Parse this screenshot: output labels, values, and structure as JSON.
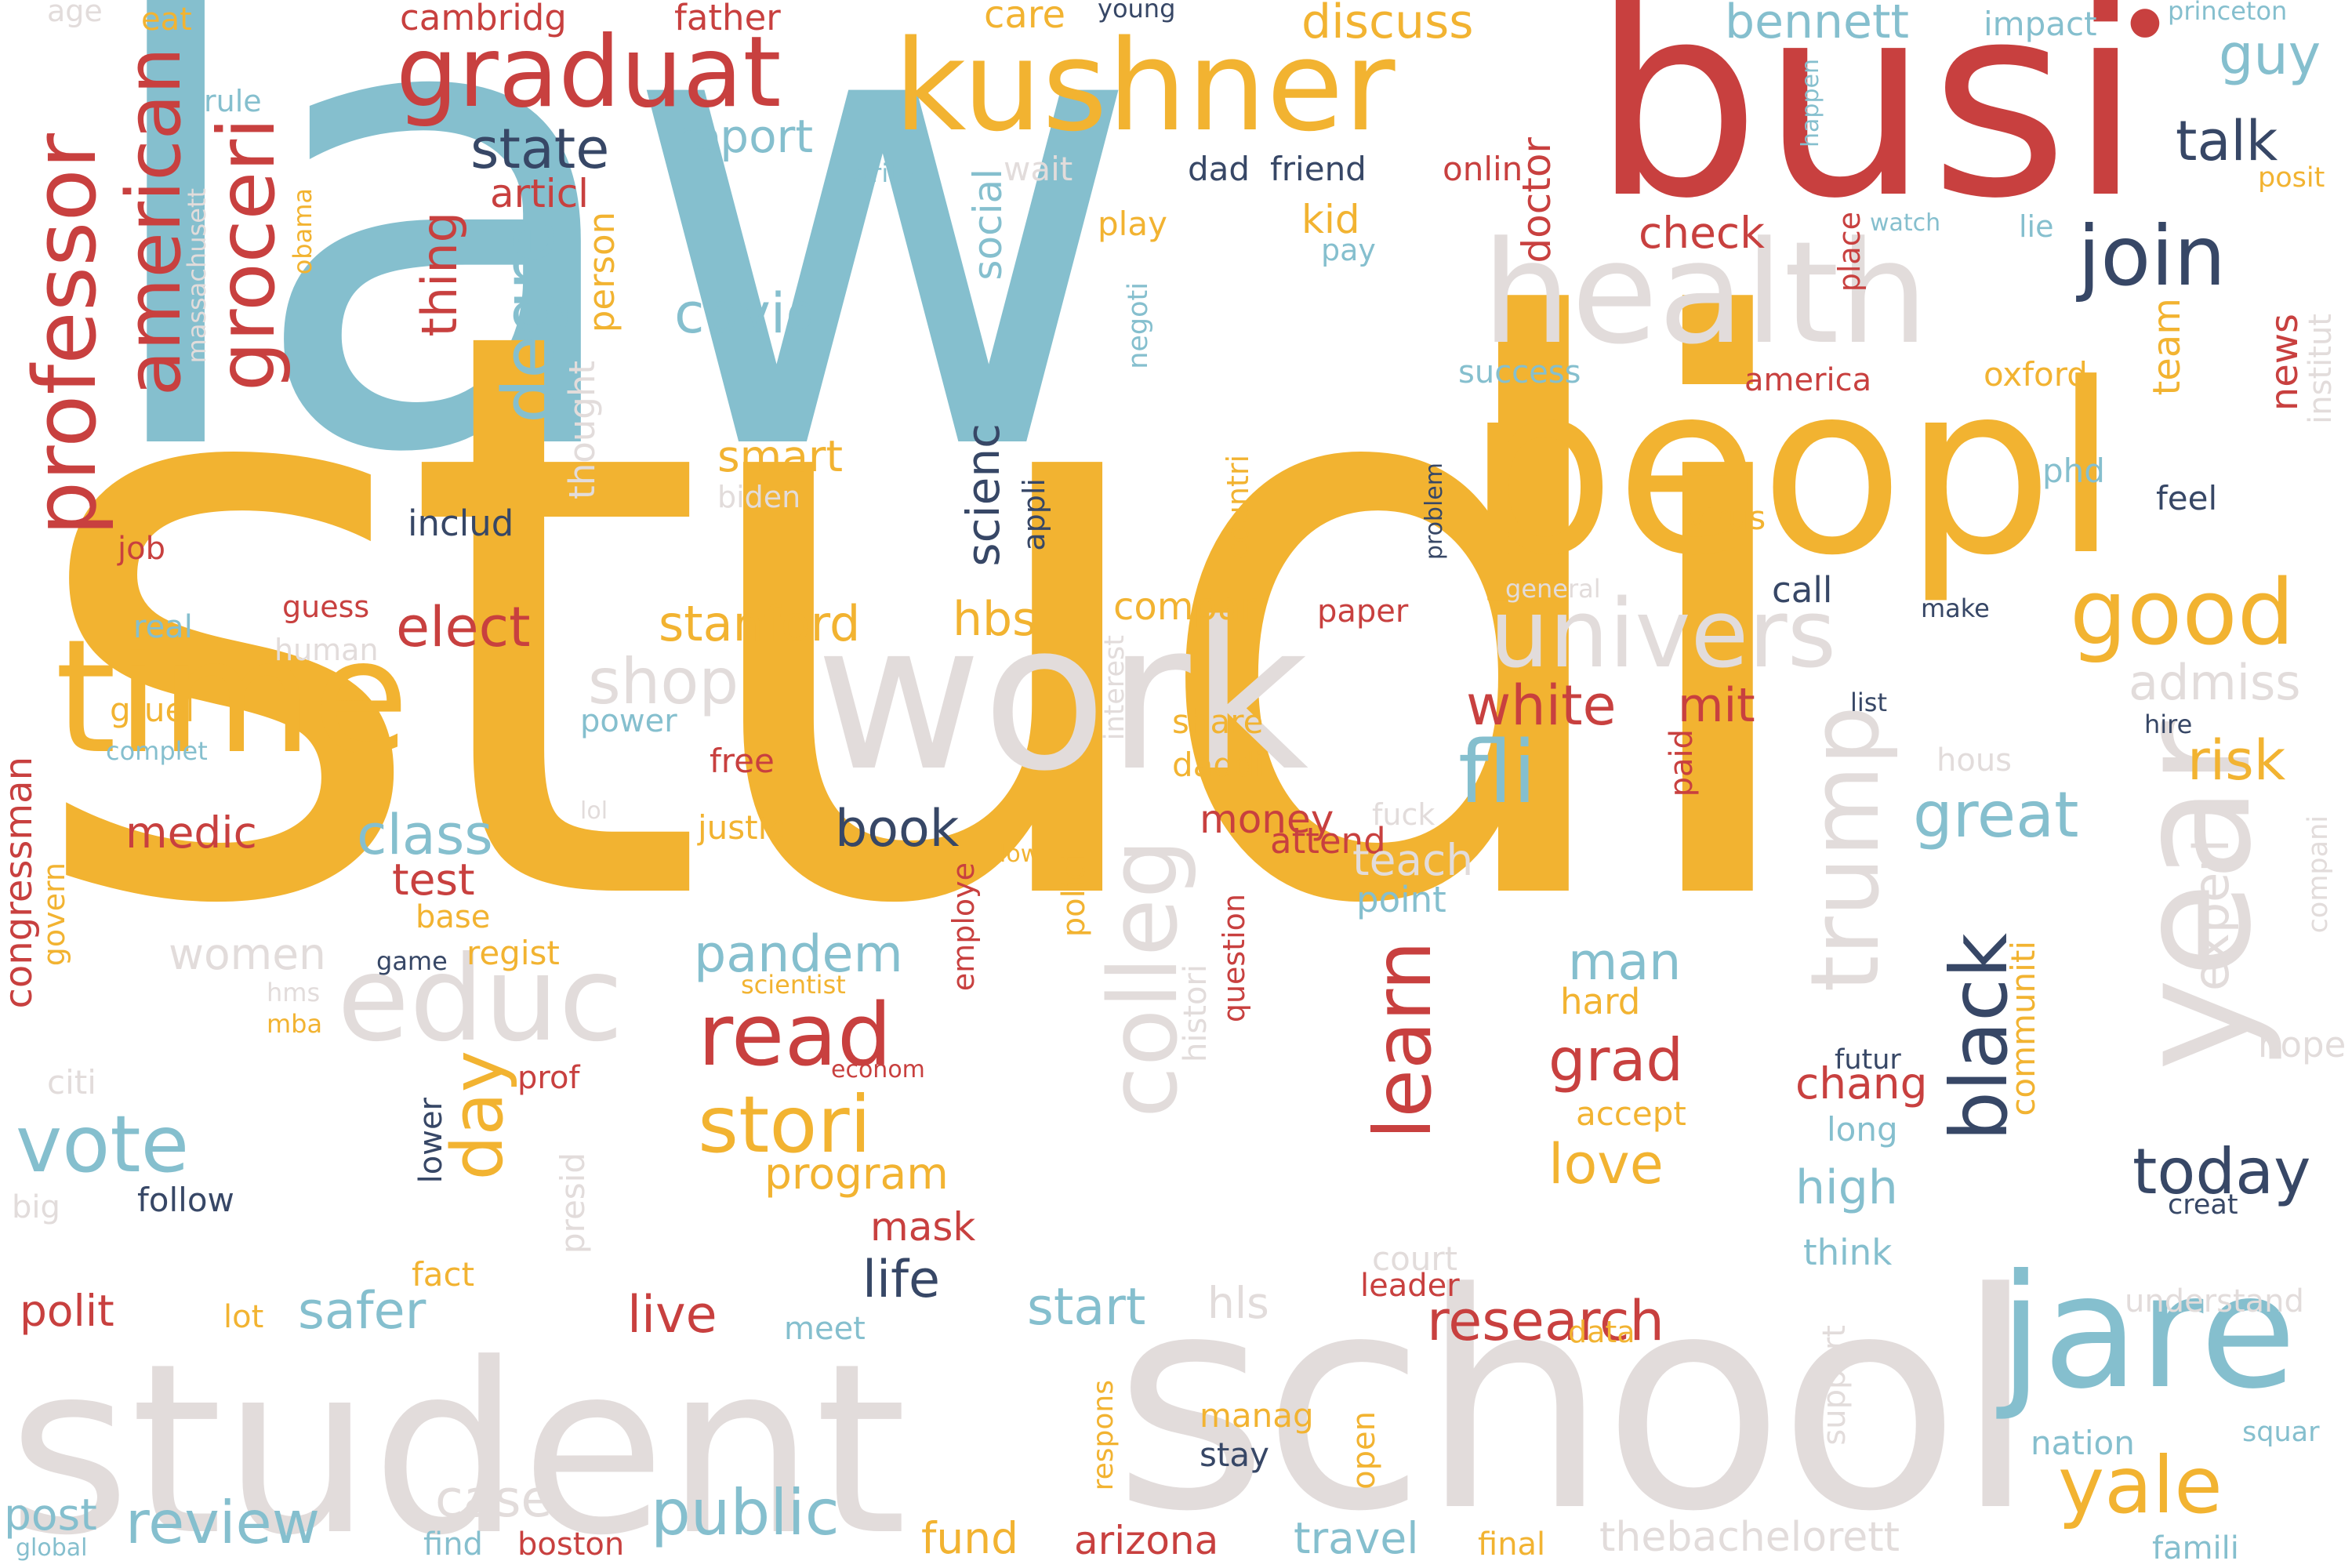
{
  "palette": {
    "red": "#c8403f",
    "yellow": "#f2b331",
    "blue": "#85bfce",
    "navy": "#374766",
    "gray": "#e2dcdb",
    "background": "#ffffff"
  },
  "words": {
    "law": "law",
    "studi": "studi",
    "student": "student",
    "school": "school",
    "busi": "busi",
    "peopl": "peopl",
    "work": "work",
    "health": "health",
    "kushner": "kushner",
    "graduat": "graduat",
    "time": "time",
    "year": "year",
    "jare": "jare",
    "educ": "educ",
    "colleg": "colleg",
    "trump": "trump",
    "univers": "univers",
    "good": "good",
    "professor": "professor",
    "american": "american",
    "groceri": "groceri",
    "degre": "degre",
    "join": "join",
    "read": "read",
    "stori": "stori",
    "learn": "learn",
    "black": "black",
    "fli": "fli",
    "day": "day",
    "vote": "vote",
    "yale": "yale",
    "great": "great",
    "today": "today",
    "public": "public",
    "review": "review",
    "research": "research",
    "shop": "shop",
    "state": "state",
    "covid": "covid",
    "elect": "elect",
    "white": "white",
    "class": "class",
    "stanford": "stanford",
    "pandem": "pandem",
    "grad": "grad",
    "love": "love",
    "man": "man",
    "risk": "risk",
    "safer": "safer",
    "start": "start",
    "live": "live",
    "life": "life",
    "book": "book",
    "talk": "talk",
    "guy": "guy",
    "bennett": "bennett",
    "discuss": "discuss",
    "report": "report",
    "thing": "thing",
    "hbs": "hbs",
    "smart": "smart",
    "scienc": "scienc",
    "social": "social",
    "admiss": "admiss",
    "experi": "experi",
    "mit": "mit",
    "chang": "chang",
    "high": "high",
    "program": "program",
    "case": "case",
    "travel": "travel",
    "arizona": "arizona",
    "fund": "fund",
    "thebachelorett": "thebachelorett",
    "boston": "boston",
    "find": "find",
    "post": "post",
    "global": "global",
    "medic": "medic",
    "test": "test",
    "polit": "polit",
    "women": "women",
    "congressman": "congressman",
    "check": "check",
    "doctor": "doctor",
    "articl": "articl",
    "person": "person",
    "thought": "thought",
    "includ": "includ",
    "job": "job",
    "real": "real",
    "guess": "guess",
    "human": "human",
    "gruel": "gruel",
    "complet": "complet",
    "govern": "govern",
    "base": "base",
    "regist": "regist",
    "game": "game",
    "hms": "hms",
    "mba": "mba",
    "citi": "citi",
    "prof": "prof",
    "big": "big",
    "follow": "follow",
    "lower": "lower",
    "presid": "presid",
    "fact": "fact",
    "lot": "lot",
    "meet": "meet",
    "mask": "mask",
    "money": "money",
    "attend": "attend",
    "teach": "teach",
    "point": "point",
    "court": "court",
    "leader": "leader",
    "hls": "hls",
    "data": "data",
    "manag": "manag",
    "stay": "stay",
    "open": "open",
    "respons": "respons",
    "final": "final",
    "support": "support",
    "nation": "nation",
    "squar": "squar",
    "famili": "famili",
    "understand": "understand",
    "hope": "hope",
    "futur": "futur",
    "long": "long",
    "accept": "accept",
    "think": "think",
    "communiti": "communiti",
    "creat": "creat",
    "hard": "hard",
    "hire": "hire",
    "hous": "hous",
    "list": "list",
    "paid": "paid",
    "news": "news",
    "team": "team",
    "oxford": "oxford",
    "institut": "institut",
    "compani": "compani",
    "phd": "phd",
    "feel": "feel",
    "virus": "virus",
    "call": "call",
    "make": "make",
    "general": "general",
    "problem": "problem",
    "paper": "paper",
    "compar": "compar",
    "share": "share",
    "daddi": "daddi",
    "interest": "interest",
    "polici": "polici",
    "fuck": "fuck",
    "question": "question",
    "histori": "histori",
    "econom": "econom",
    "scientist": "scientist",
    "employe": "employe",
    "low": "low",
    "justic": "justic",
    "free": "free",
    "lol": "lol",
    "power": "power",
    "negoti": "negoti",
    "countri": "countri",
    "appli": "appli",
    "biden": "biden",
    "kid": "kid",
    "pay": "pay",
    "play": "play",
    "dad": "dad",
    "friend": "friend",
    "onlin": "onlin",
    "wait": "wait",
    "write": "write",
    "success": "success",
    "america": "america",
    "place": "place",
    "watch": "watch",
    "lie": "lie",
    "posit": "posit",
    "happen": "happen",
    "princeton": "princeton",
    "impact": "impact",
    "young": "young",
    "care": "care",
    "father": "father",
    "cambridg": "cambridg",
    "eat": "eat",
    "age": "age",
    "rule": "rule",
    "massachusett": "massachusett",
    "obama": "obama",
    "dot": "●"
  }
}
